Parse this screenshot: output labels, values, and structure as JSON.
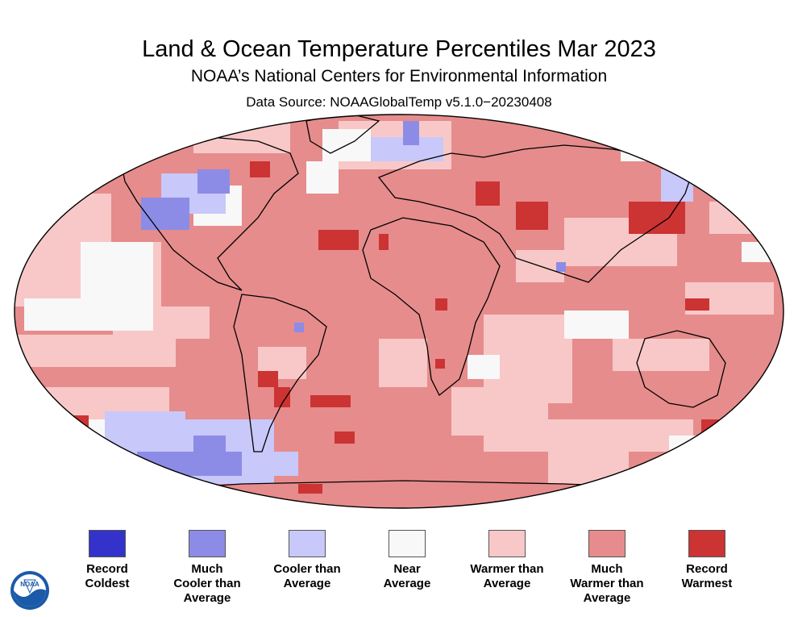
{
  "header": {
    "title": "Land & Ocean Temperature Percentiles Mar 2023",
    "subtitle": "NOAA’s National Centers for Environmental Information",
    "source": "Data Source: NOAAGlobalTemp v5.1.0−20230408"
  },
  "legend": [
    {
      "label": "Record\nColdest",
      "color": "#3333cc"
    },
    {
      "label": "Much\nCooler than\nAverage",
      "color": "#8c8ce6"
    },
    {
      "label": "Cooler than\nAverage",
      "color": "#c8c8fa"
    },
    {
      "label": "Near\nAverage",
      "color": "#f8f8f8"
    },
    {
      "label": "Warmer than\nAverage",
      "color": "#f8c8c8"
    },
    {
      "label": "Much\nWarmer than\nAverage",
      "color": "#e68c8c"
    },
    {
      "label": "Record\nWarmest",
      "color": "#cc3333"
    }
  ],
  "logo": {
    "text": "NOAA",
    "icon": "noaa-logo-icon"
  }
}
